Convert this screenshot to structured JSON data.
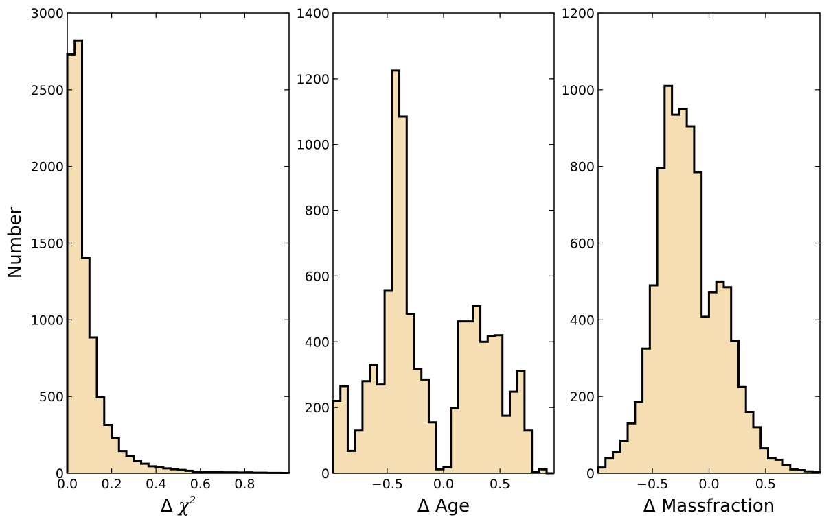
{
  "figure": {
    "ylabel": "Number"
  },
  "chart_data": [
    {
      "type": "histogram",
      "xlabel": "Δ χ²",
      "xlabel_parts": {
        "prefix": "Δ ",
        "var": "χ",
        "sup": "2"
      },
      "ylabel": "Number",
      "xlim": [
        0.0,
        1.0
      ],
      "ylim": [
        0,
        3000
      ],
      "xticks": [
        0.0,
        0.2,
        0.4,
        0.6,
        0.8
      ],
      "xtick_labels": [
        "0.0",
        "0.2",
        "0.4",
        "0.6",
        "0.8"
      ],
      "yticks": [
        0,
        500,
        1000,
        1500,
        2000,
        2500,
        3000
      ],
      "ytick_labels": [
        "0",
        "500",
        "1000",
        "1500",
        "2000",
        "2500",
        "3000"
      ],
      "bin_start": 0.0,
      "bin_width": 0.0333,
      "counts": [
        2730,
        2820,
        1405,
        885,
        495,
        315,
        230,
        145,
        110,
        80,
        62,
        45,
        38,
        32,
        26,
        22,
        16,
        11,
        9,
        8,
        8,
        6,
        6,
        5,
        6,
        4,
        4,
        3,
        3,
        2
      ],
      "fill": "#f5deb3",
      "edge": "#000000",
      "grid": false
    },
    {
      "type": "histogram",
      "xlabel": "Δ Age",
      "ylabel": "",
      "xlim": [
        -0.98,
        0.98
      ],
      "ylim": [
        0,
        1400
      ],
      "xticks": [
        -0.5,
        0.0,
        0.5
      ],
      "xtick_labels": [
        "−0.5",
        "0.0",
        "0.5"
      ],
      "yticks": [
        0,
        200,
        400,
        600,
        800,
        1000,
        1200,
        1400
      ],
      "ytick_labels": [
        "0",
        "200",
        "400",
        "600",
        "800",
        "1000",
        "1200",
        "1400"
      ],
      "bin_start": -0.98,
      "bin_width": 0.0653,
      "counts": [
        220,
        265,
        68,
        130,
        280,
        330,
        270,
        555,
        1225,
        1085,
        485,
        318,
        285,
        155,
        12,
        18,
        198,
        462,
        462,
        508,
        400,
        418,
        420,
        175,
        248,
        312,
        130,
        5,
        12,
        0
      ],
      "fill": "#f5deb3",
      "edge": "#000000",
      "grid": false
    },
    {
      "type": "histogram",
      "xlabel": "Δ Massfraction",
      "ylabel": "",
      "xlim": [
        -0.98,
        0.98
      ],
      "ylim": [
        0,
        1200
      ],
      "xticks": [
        -0.5,
        0.0,
        0.5
      ],
      "xtick_labels": [
        "−0.5",
        "0.0",
        "0.5"
      ],
      "yticks": [
        0,
        200,
        400,
        600,
        800,
        1000,
        1200
      ],
      "ytick_labels": [
        "0",
        "200",
        "400",
        "600",
        "800",
        "1000",
        "1200"
      ],
      "bin_start": -0.98,
      "bin_width": 0.0653,
      "counts": [
        15,
        40,
        55,
        85,
        130,
        185,
        325,
        490,
        795,
        1010,
        935,
        950,
        905,
        785,
        408,
        472,
        500,
        485,
        345,
        225,
        160,
        120,
        65,
        40,
        35,
        22,
        10,
        8,
        5,
        3
      ],
      "fill": "#f5deb3",
      "edge": "#000000",
      "grid": false
    }
  ]
}
